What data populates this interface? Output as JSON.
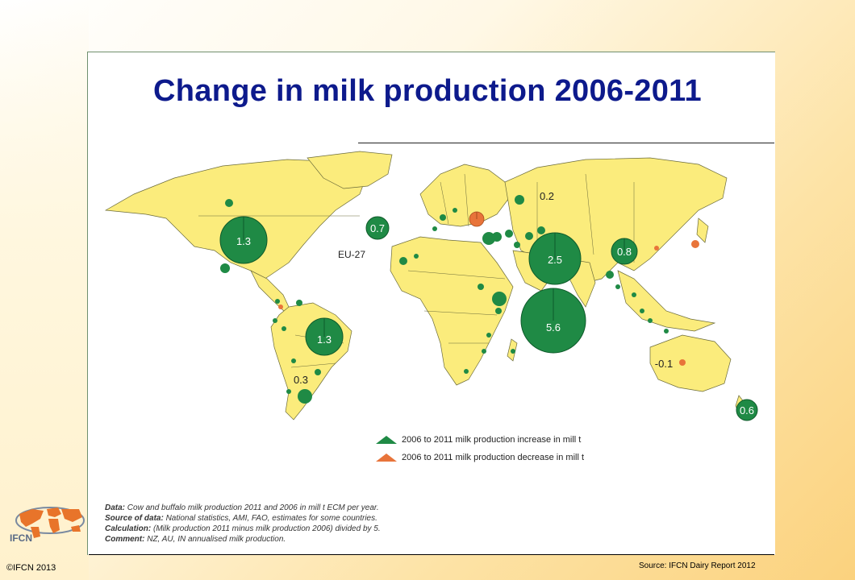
{
  "title": "Change in milk production 2006-2011",
  "eu_label": "EU-27",
  "bubbles": [
    {
      "label": "1.3",
      "kind": "increase"
    },
    {
      "label": "0.7",
      "kind": "increase"
    },
    {
      "label": "0.2",
      "kind": "increase"
    },
    {
      "label": "2.5",
      "kind": "increase"
    },
    {
      "label": "0.8",
      "kind": "increase"
    },
    {
      "label": "5.6",
      "kind": "increase"
    },
    {
      "label": "1.3",
      "kind": "increase"
    },
    {
      "label": "0.3",
      "kind": "increase"
    },
    {
      "label": "-0.1",
      "kind": "decrease"
    },
    {
      "label": "0.6",
      "kind": "increase"
    }
  ],
  "legend": {
    "increase": "2006 to 2011 milk production increase in mill t",
    "decrease": "2006 to 2011 milk production decrease in mill t",
    "increase_color": "#1f8a45",
    "decrease_color": "#e8743a"
  },
  "notes": {
    "data_label": "Data:",
    "data_text": " Cow and buffalo milk production 2011 and 2006 in mill t ECM per year.",
    "source_label": "Source of data:",
    "source_text": " National statistics, AMI, FAO, estimates for some countries.",
    "calc_label": "Calculation:",
    "calc_text": " (Milk production 2011 minus milk production 2006) divided by 5.",
    "comment_label": "Comment:",
    "comment_text": " NZ, AU, IN annualised milk production."
  },
  "logo_text": "IFCN",
  "copyright": "©IFCN 2013",
  "source": "Source: IFCN Dairy Report 2012",
  "colors": {
    "title": "#0d1a8c",
    "land": "#fbec7c",
    "increase": "#1f8a45",
    "decrease": "#e8743a"
  }
}
